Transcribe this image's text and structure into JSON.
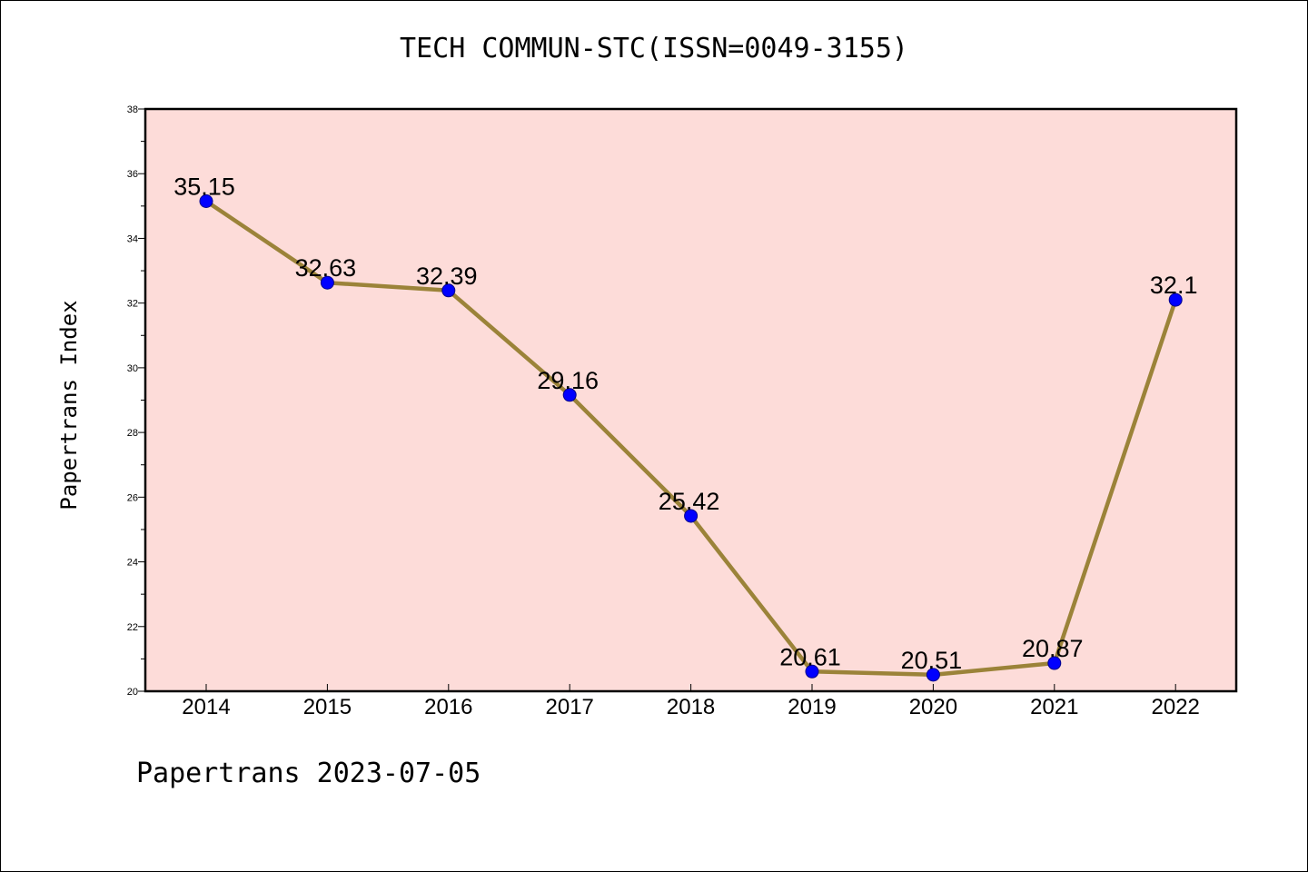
{
  "title": "TECH COMMUN-STC(ISSN=0049-3155)",
  "footer": "Papertrans 2023-07-05",
  "colors": {
    "plot_background": "#fddcd9",
    "line": "#9b8339",
    "marker": "#0000ff",
    "marker_edge": "#00008b"
  },
  "chart_data": {
    "type": "line",
    "title": "TECH COMMUN-STC(ISSN=0049-3155)",
    "xlabel": "",
    "ylabel": "Papertrans Index",
    "categories": [
      "2014",
      "2015",
      "2016",
      "2017",
      "2018",
      "2019",
      "2020",
      "2021",
      "2022"
    ],
    "series": [
      {
        "values": [
          35.15,
          32.63,
          32.39,
          29.16,
          25.42,
          20.61,
          20.51,
          20.87,
          32.1
        ],
        "labels": [
          "35.15",
          "32.63",
          "32.39",
          "29.16",
          "25.42",
          "20.61",
          "20.51",
          "20.87",
          "32.1"
        ]
      }
    ],
    "ylim": [
      20,
      38
    ],
    "yticks": [
      20,
      22,
      24,
      26,
      28,
      30,
      32,
      34,
      36,
      38
    ],
    "grid": false,
    "legend": "none"
  }
}
